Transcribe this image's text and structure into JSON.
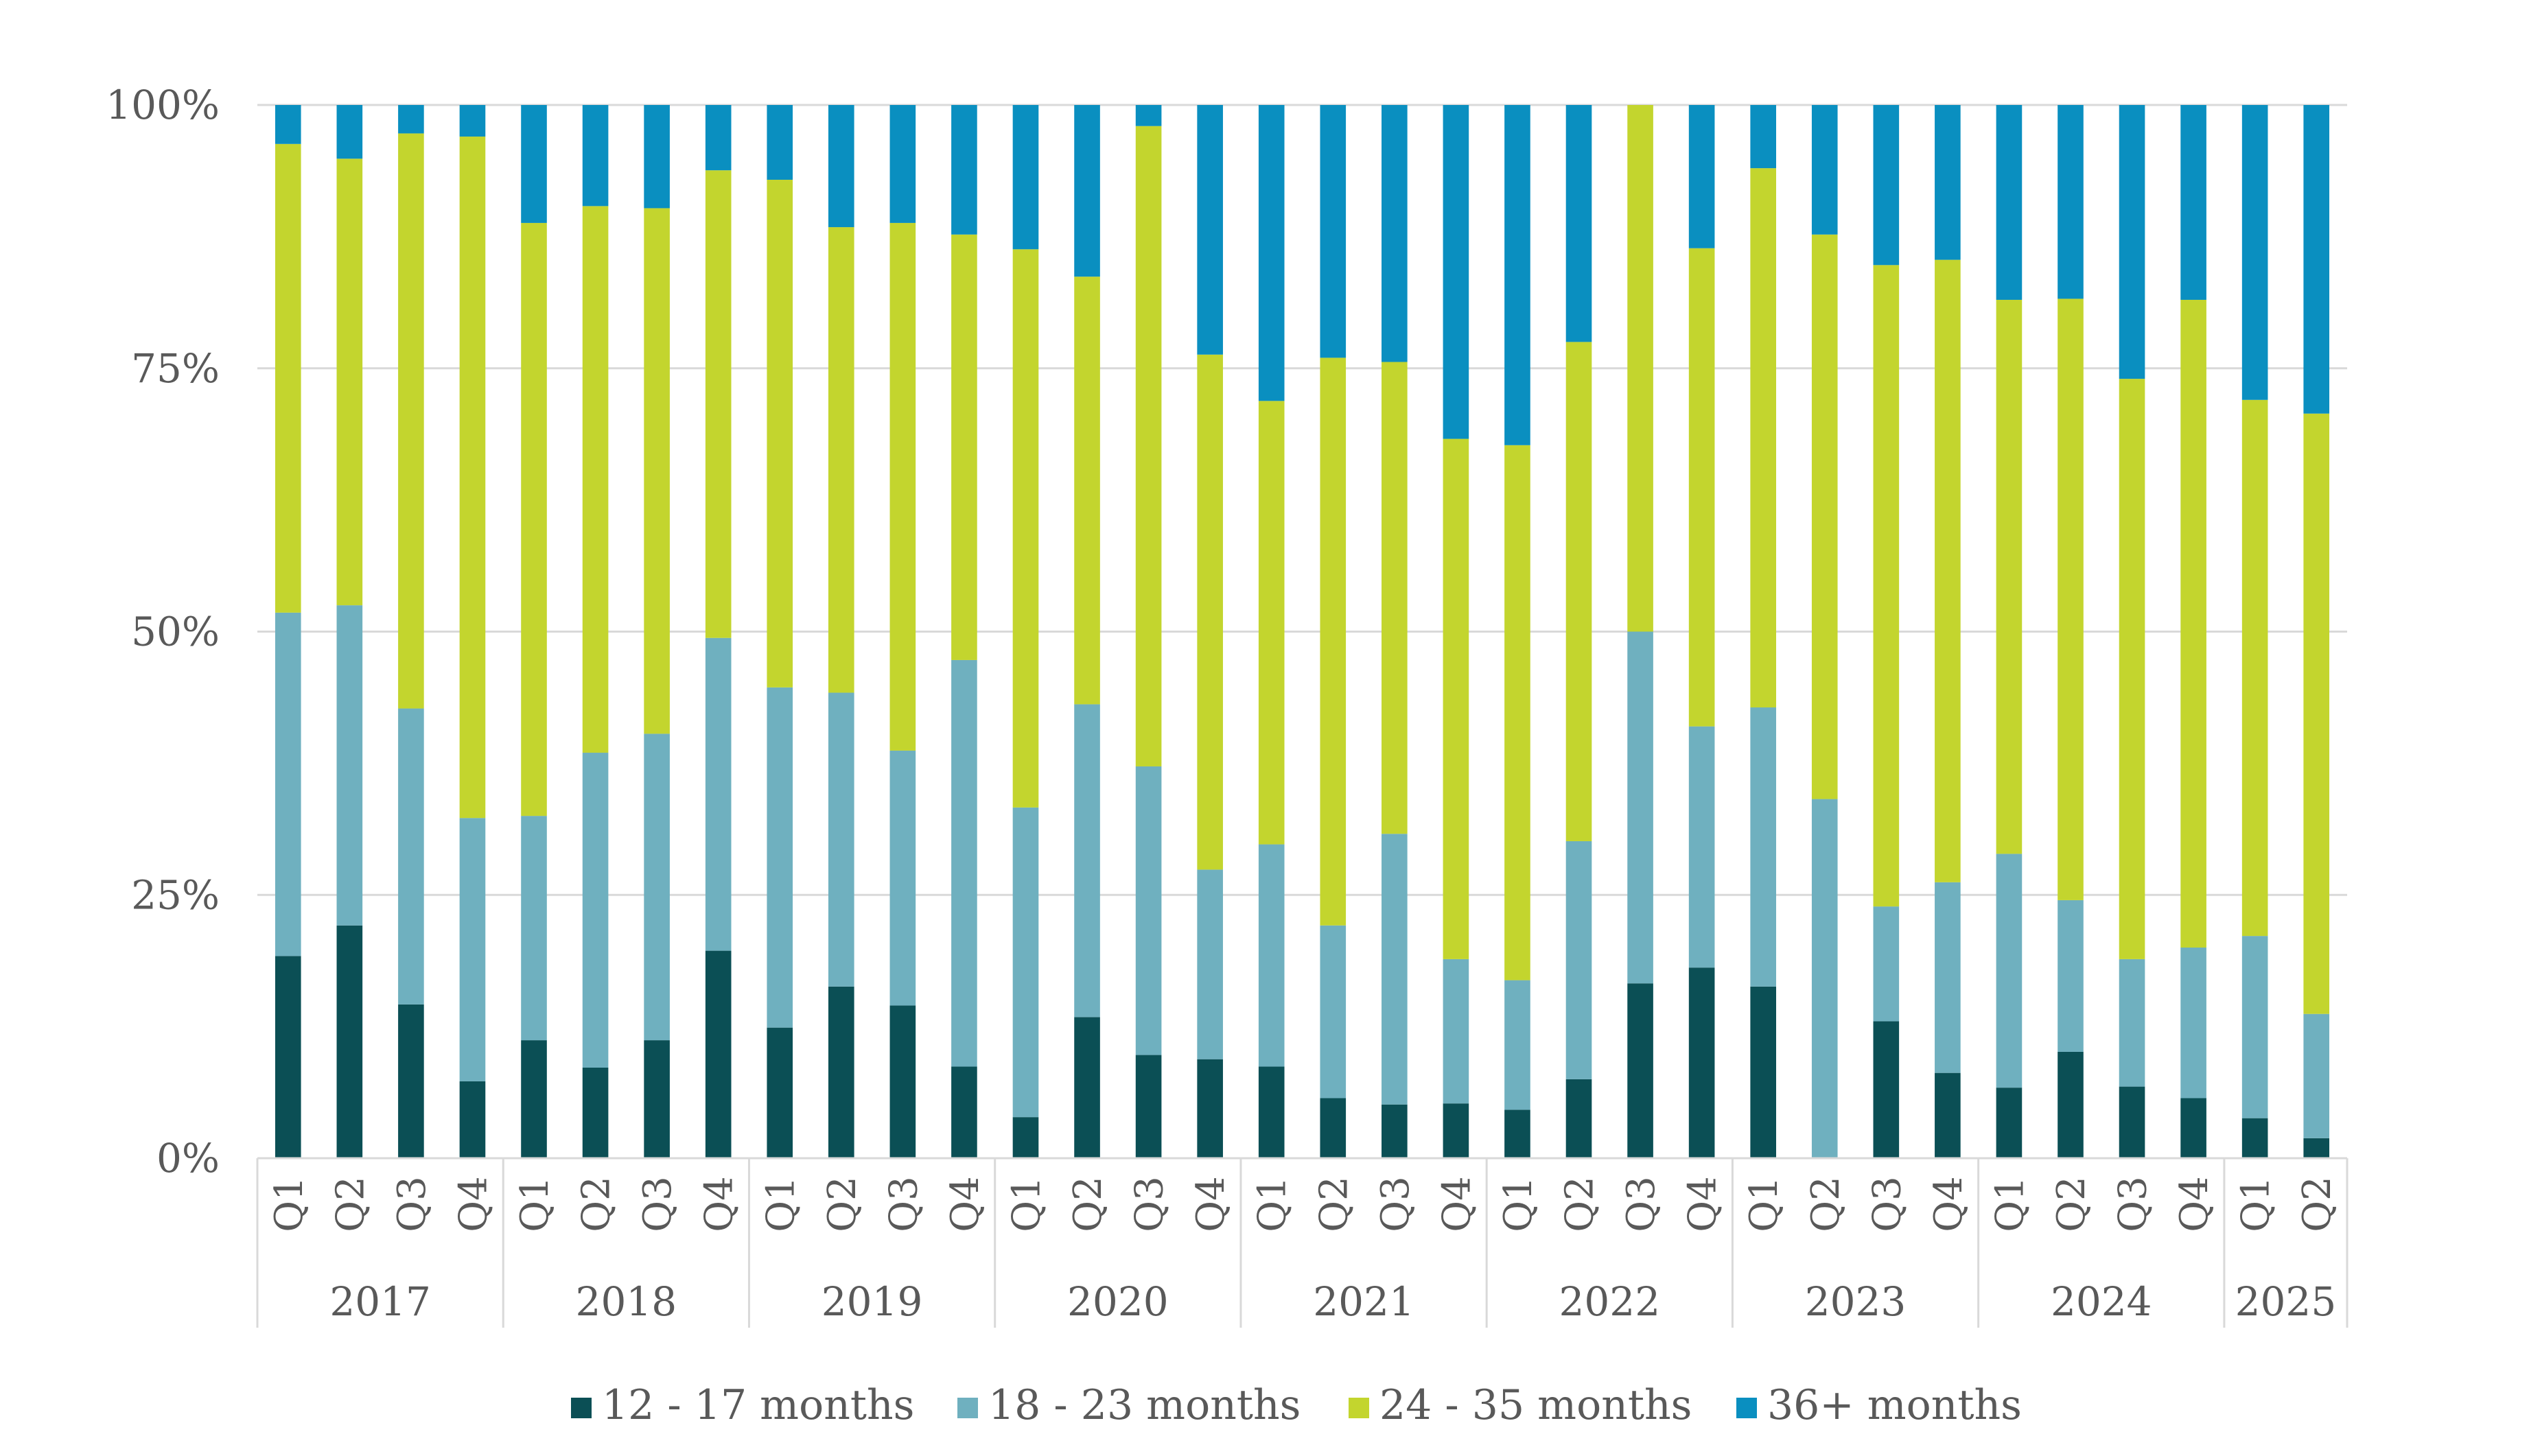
{
  "chart_data": {
    "type": "bar",
    "stacked": true,
    "title": "",
    "xlabel": "",
    "ylabel": "",
    "ylim": [
      0,
      100
    ],
    "y_ticks": [
      "0%",
      "25%",
      "50%",
      "75%",
      "100%"
    ],
    "y_tick_values": [
      0,
      25,
      50,
      75,
      100
    ],
    "grid": true,
    "legend_position": "bottom",
    "years": [
      {
        "label": "2017",
        "quarters": 4
      },
      {
        "label": "2018",
        "quarters": 4
      },
      {
        "label": "2019",
        "quarters": 4
      },
      {
        "label": "2020",
        "quarters": 4
      },
      {
        "label": "2021",
        "quarters": 4
      },
      {
        "label": "2022",
        "quarters": 4
      },
      {
        "label": "2023",
        "quarters": 4
      },
      {
        "label": "2024",
        "quarters": 4
      },
      {
        "label": "2025",
        "quarters": 2
      }
    ],
    "categories": [
      "Q1",
      "Q2",
      "Q3",
      "Q4",
      "Q1",
      "Q2",
      "Q3",
      "Q4",
      "Q1",
      "Q2",
      "Q3",
      "Q4",
      "Q1",
      "Q2",
      "Q3",
      "Q4",
      "Q1",
      "Q2",
      "Q3",
      "Q4",
      "Q1",
      "Q2",
      "Q3",
      "Q4",
      "Q1",
      "Q2",
      "Q3",
      "Q4",
      "Q1",
      "Q2",
      "Q3",
      "Q4",
      "Q1",
      "Q2"
    ],
    "series": [
      {
        "name": "12 - 17 months",
        "color": "#0b4f55",
        "values": [
          19.2,
          22.1,
          14.6,
          7.3,
          11.2,
          8.6,
          11.2,
          19.7,
          12.4,
          16.3,
          14.5,
          8.7,
          3.9,
          13.4,
          9.8,
          9.4,
          8.7,
          5.7,
          5.1,
          5.2,
          4.6,
          7.5,
          16.6,
          18.1,
          16.3,
          0,
          13.0,
          8.1,
          6.7,
          10.1,
          6.8,
          5.7,
          3.8,
          1.9
        ]
      },
      {
        "name": "18 - 23 months",
        "color": "#6fb0bf",
        "values": [
          32.6,
          30.4,
          28.1,
          25.0,
          21.3,
          29.9,
          29.1,
          29.7,
          32.3,
          27.9,
          24.2,
          38.6,
          29.4,
          29.7,
          27.4,
          18.0,
          21.1,
          16.4,
          25.7,
          13.7,
          12.3,
          22.6,
          33.4,
          22.9,
          26.5,
          34.1,
          10.9,
          18.1,
          22.2,
          14.4,
          12.1,
          14.3,
          17.3,
          11.8
        ]
      },
      {
        "name": "24 - 35 months",
        "color": "#c3d52e",
        "values": [
          44.5,
          42.4,
          54.6,
          64.7,
          56.3,
          51.9,
          49.9,
          44.4,
          48.2,
          44.2,
          50.1,
          40.4,
          53.0,
          40.6,
          60.8,
          48.9,
          42.1,
          53.9,
          44.8,
          49.4,
          50.8,
          47.4,
          50.0,
          45.4,
          51.2,
          53.6,
          60.9,
          59.1,
          52.6,
          57.1,
          55.1,
          61.5,
          50.9,
          57.0
        ]
      },
      {
        "name": "36+ months",
        "color": "#0a8fc0",
        "values": [
          3.7,
          5.1,
          2.7,
          3.0,
          11.2,
          9.6,
          9.8,
          6.2,
          7.1,
          11.6,
          11.2,
          12.3,
          13.7,
          16.3,
          2.0,
          23.7,
          28.1,
          24.0,
          24.4,
          31.7,
          32.3,
          22.5,
          0,
          13.6,
          6.0,
          12.3,
          15.2,
          14.7,
          18.5,
          18.4,
          26.0,
          18.5,
          28.0,
          29.3
        ]
      }
    ]
  }
}
